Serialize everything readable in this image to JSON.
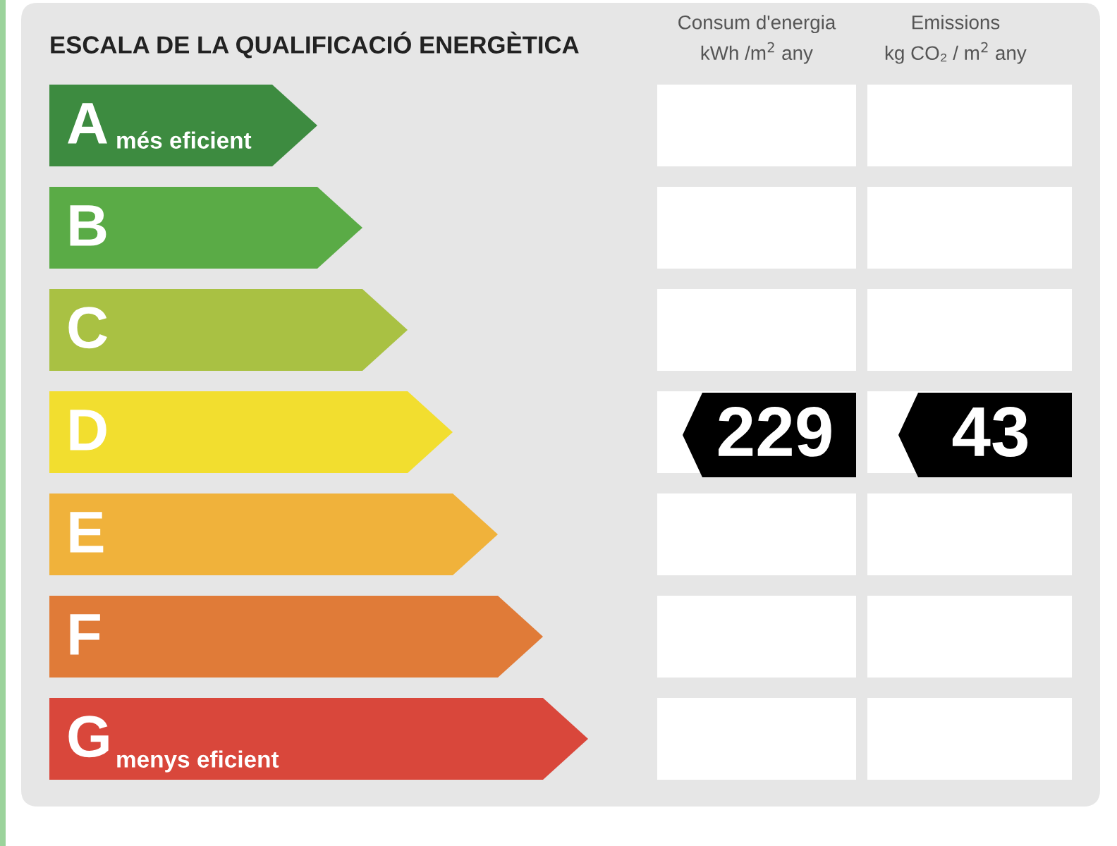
{
  "chart_data": {
    "type": "other",
    "title": "ESCALA DE LA QUALIFICACIÓ ENERGÈTICA",
    "categories": [
      "A",
      "B",
      "C",
      "D",
      "E",
      "F",
      "G"
    ],
    "colors": [
      "#3d8b40",
      "#5aab46",
      "#a9c143",
      "#f2de2f",
      "#f0b23b",
      "#e07b38",
      "#d9473b"
    ],
    "annotations": [
      "més eficient",
      "menys eficient",
      "Consum d'energia\nkWh /m$^{2}$ any",
      "Emissions\nkg CO₂ / m$^{2}$ any"
    ],
    "data_labels": true,
    "series": [
      {
        "color": "#000000",
        "values": [
          null,
          null,
          null,
          229,
          null,
          null,
          null
        ]
      },
      {
        "color": "#000000",
        "values": [
          null,
          null,
          null,
          43,
          null,
          null,
          null
        ]
      }
    ]
  }
}
